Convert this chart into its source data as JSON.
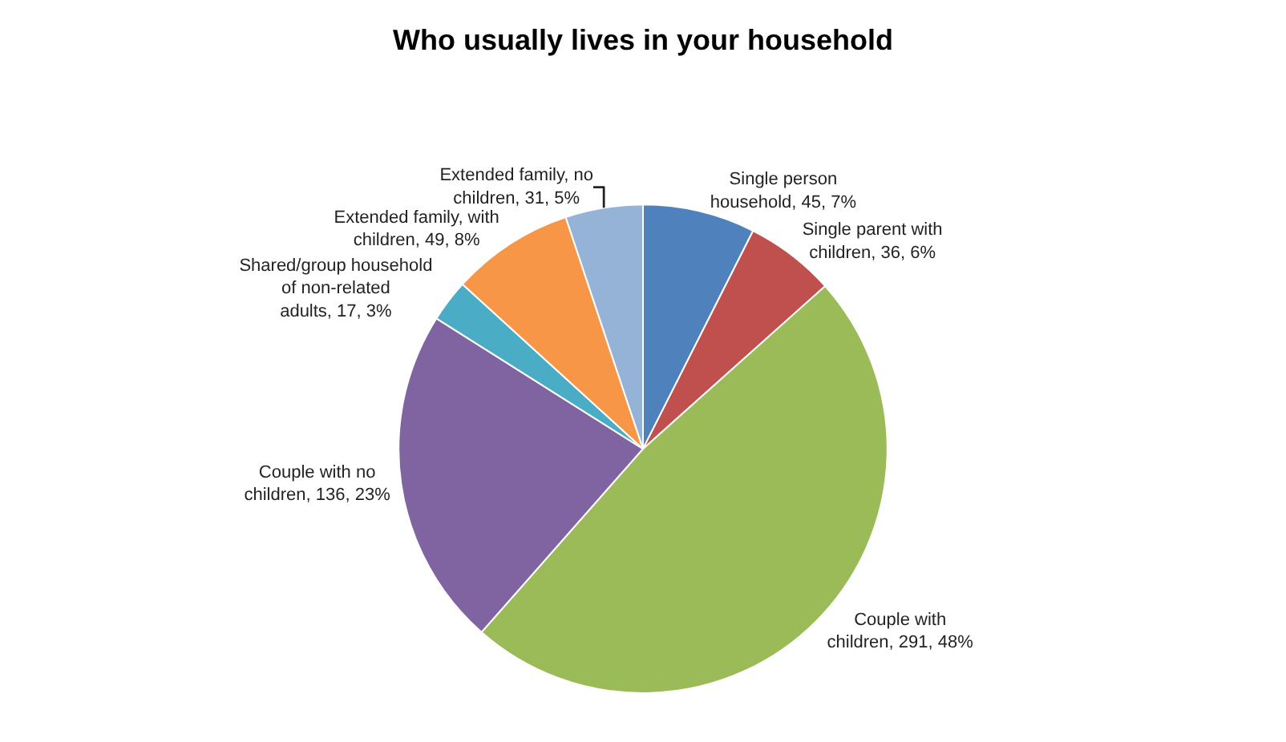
{
  "chart_data": {
    "type": "pie",
    "title": "Who usually lives in your household",
    "categories": [
      "Single person household",
      "Single parent with children",
      "Couple with children",
      "Couple with no children",
      "Shared/group household of non-related adults",
      "Extended family, with children",
      "Extended family, no children"
    ],
    "values": [
      45,
      36,
      291,
      136,
      17,
      49,
      31
    ],
    "value_labels": [
      "45, 7%",
      "36, 6%",
      "291, 48%",
      "136, 23%",
      "17, 3%",
      "49, 8%",
      "31, 5%"
    ],
    "colors": [
      "#4f81bd",
      "#c0504d",
      "#9bbb59",
      "#8064a2",
      "#4bacc6",
      "#f79646",
      "#95b3d7"
    ],
    "legend": false
  }
}
